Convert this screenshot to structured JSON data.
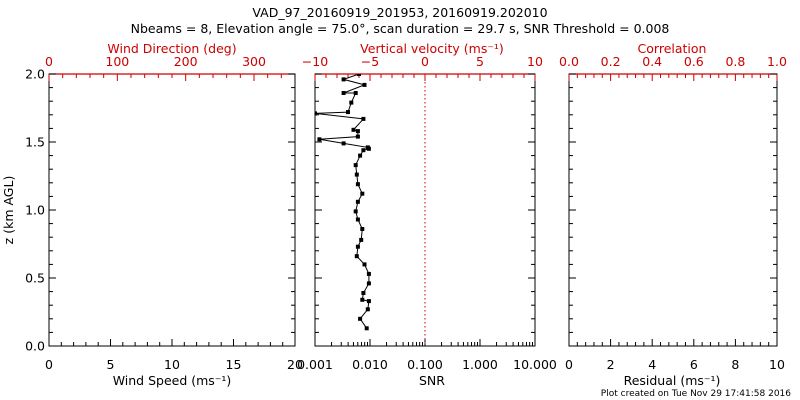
{
  "title_line1": "VAD_97_20160919_201953, 20160919.202010",
  "title_line2": "Nbeams = 8, Elevation angle = 75.0°, scan duration = 29.7 s, SNR Threshold = 0.008",
  "footer": "Plot created on Tue Nov 29 17:41:58 2016",
  "colors": {
    "axis": "#000000",
    "top_axis": "#cc0000",
    "data": "#000000",
    "zero_line": "#cc0000"
  },
  "chart_data": [
    {
      "type": "line",
      "panel": "left",
      "ylabel": "z (km AGL)",
      "ylim": [
        0,
        2.0
      ],
      "y_ticks": [
        "0.0",
        "0.5",
        "1.0",
        "1.5",
        "2.0"
      ],
      "xlabel_bottom": "Wind Speed (ms⁻¹)",
      "xlim_bottom": [
        0,
        20
      ],
      "x_ticks_bottom": [
        "0",
        "5",
        "10",
        "15",
        "20"
      ],
      "xlabel_top": "Wind Direction (deg)",
      "xlim_top": [
        0,
        360
      ],
      "x_ticks_top": [
        "0",
        "100",
        "200",
        "300"
      ],
      "series": []
    },
    {
      "type": "line",
      "panel": "middle",
      "xlabel_bottom": "SNR",
      "x_scale_bottom": "log",
      "xlim_bottom": [
        0.001,
        10
      ],
      "x_ticks_bottom": [
        "0.001",
        "0.010",
        "0.100",
        "1.000",
        "10.000"
      ],
      "xlabel_top": "Vertical velocity (ms⁻¹)",
      "xlim_top": [
        -10,
        10
      ],
      "x_ticks_top": [
        "−10",
        "−5",
        "0",
        "5",
        "10"
      ],
      "zero_reference_line": 0,
      "series": [
        {
          "axis": "top",
          "x": [
            -5.3,
            -5.9,
            -5.2,
            -5.1,
            -5.7,
            -5.6,
            -5.1,
            -5.1,
            -5.5,
            -6.2,
            -6.1,
            -5.8,
            -5.7,
            -6.1,
            -6.3,
            -6.1,
            -5.7,
            -6.1,
            -6.2,
            -6.3,
            -5.9,
            -5.6,
            -5.1,
            -5.2,
            -7.4,
            -9.6,
            -6.1,
            -6.1,
            -6.5,
            -5.6,
            -10.0,
            -7.0,
            -6.7,
            -6.3,
            -7.4,
            -5.5,
            -7.4,
            -6.0,
            -10.0
          ],
          "y": [
            0.13,
            0.2,
            0.27,
            0.33,
            0.34,
            0.39,
            0.46,
            0.53,
            0.6,
            0.66,
            0.73,
            0.78,
            0.86,
            0.93,
            0.99,
            1.06,
            1.12,
            1.19,
            1.26,
            1.33,
            1.4,
            1.44,
            1.45,
            1.46,
            1.49,
            1.52,
            1.54,
            1.58,
            1.59,
            1.67,
            1.71,
            1.72,
            1.79,
            1.86,
            1.86,
            1.92,
            1.96,
            2.0,
            2.05
          ]
        }
      ]
    },
    {
      "type": "line",
      "panel": "right",
      "xlabel_bottom": "Residual (ms⁻¹)",
      "xlim_bottom": [
        0,
        10
      ],
      "x_ticks_bottom": [
        "0",
        "2",
        "4",
        "6",
        "8",
        "10"
      ],
      "xlabel_top": "Correlation",
      "xlim_top": [
        0,
        1.0
      ],
      "x_ticks_top": [
        "0.0",
        "0.2",
        "0.4",
        "0.6",
        "0.8",
        "1.0"
      ],
      "series": []
    }
  ]
}
